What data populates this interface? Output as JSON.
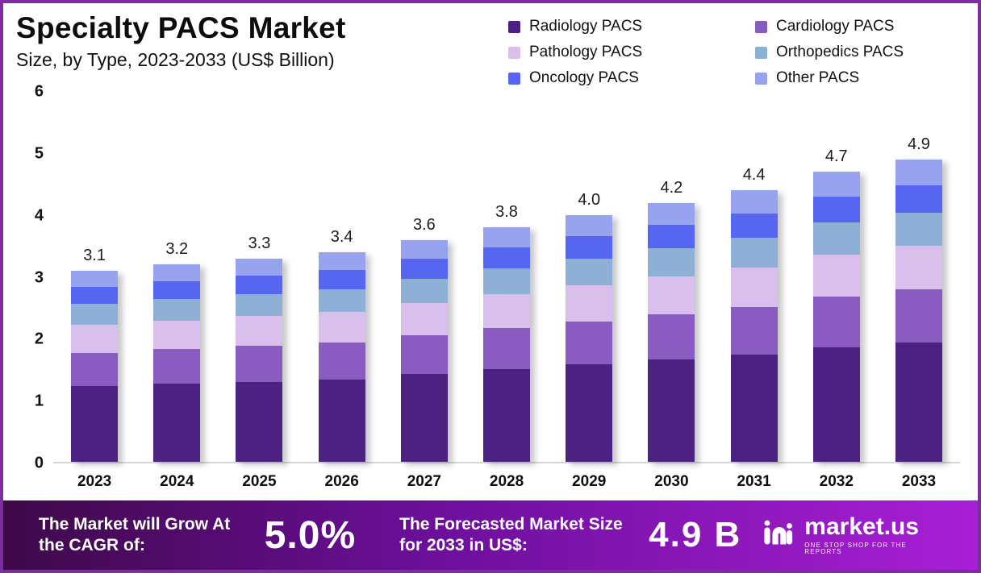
{
  "header": {
    "title": "Specialty PACS Market",
    "subtitle": "Size, by Type, 2023-2033 (US$ Billion)"
  },
  "chart_data": {
    "type": "bar",
    "stacked": true,
    "title": "Specialty PACS Market Size, by Type, 2023-2033 (US$ Billion)",
    "categories": [
      "2023",
      "2024",
      "2025",
      "2026",
      "2027",
      "2028",
      "2029",
      "2030",
      "2031",
      "2032",
      "2033"
    ],
    "totals": [
      3.1,
      3.2,
      3.3,
      3.4,
      3.6,
      3.8,
      4.0,
      4.2,
      4.4,
      4.7,
      4.9
    ],
    "series": [
      {
        "name": "Radiology PACS",
        "color": "#4b2182",
        "values": [
          1.22,
          1.26,
          1.3,
          1.34,
          1.42,
          1.5,
          1.58,
          1.66,
          1.74,
          1.86,
          1.94
        ]
      },
      {
        "name": "Cardiology PACS",
        "color": "#8a5bc0",
        "values": [
          0.54,
          0.56,
          0.58,
          0.6,
          0.63,
          0.67,
          0.7,
          0.74,
          0.77,
          0.82,
          0.86
        ]
      },
      {
        "name": "Pathology PACS",
        "color": "#d9c0ec",
        "values": [
          0.45,
          0.46,
          0.48,
          0.49,
          0.52,
          0.55,
          0.58,
          0.61,
          0.64,
          0.68,
          0.71
        ]
      },
      {
        "name": "Orthopedics PACS",
        "color": "#8fb0d6",
        "values": [
          0.34,
          0.35,
          0.36,
          0.37,
          0.4,
          0.42,
          0.44,
          0.46,
          0.48,
          0.52,
          0.54
        ]
      },
      {
        "name": "Oncology PACS",
        "color": "#5766f0",
        "values": [
          0.28,
          0.29,
          0.3,
          0.31,
          0.32,
          0.34,
          0.36,
          0.38,
          0.4,
          0.42,
          0.44
        ]
      },
      {
        "name": "Other PACS",
        "color": "#97a3ef",
        "values": [
          0.26,
          0.27,
          0.28,
          0.29,
          0.31,
          0.32,
          0.34,
          0.36,
          0.37,
          0.4,
          0.42
        ]
      }
    ],
    "xlabel": "",
    "ylabel": "",
    "ylim": [
      0,
      6
    ],
    "yticks": [
      0,
      1,
      2,
      3,
      4,
      5,
      6
    ],
    "grid": false,
    "legend_position": "top-right"
  },
  "footer": {
    "cagr_label": "The Market will Grow At the CAGR of:",
    "cagr_value": "5.0%",
    "forecast_label": "The Forecasted Market Size for 2033 in US$:",
    "forecast_value": "4.9 B",
    "brand": "market.us",
    "brand_tagline": "One Stop Shop For The Reports"
  }
}
